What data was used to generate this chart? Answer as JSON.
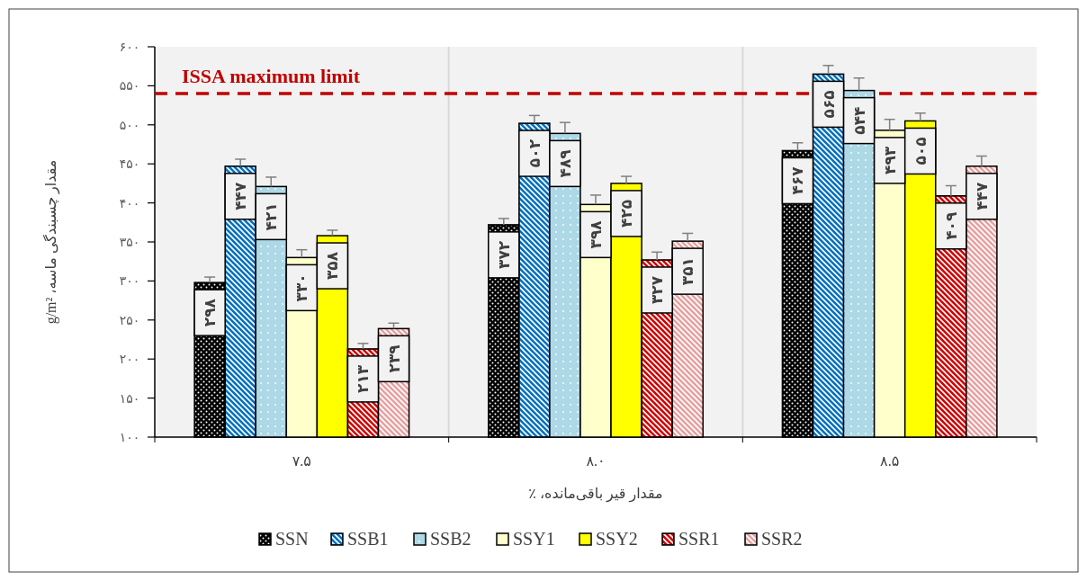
{
  "chart_data": {
    "type": "bar",
    "xlabel": "مقدار قیر باقی‌مانده، ٪",
    "ylabel": "مقدار چسبندگی ماسه، g/m²",
    "categories": [
      "۷.۵",
      "۸.۰",
      "۸.۵"
    ],
    "ylim": [
      100,
      600
    ],
    "yticks": [
      {
        "value": 100,
        "label": "۱۰۰"
      },
      {
        "value": 150,
        "label": "۱۵۰"
      },
      {
        "value": 200,
        "label": "۲۰۰"
      },
      {
        "value": 250,
        "label": "۲۵۰"
      },
      {
        "value": 300,
        "label": "۳۰۰"
      },
      {
        "value": 350,
        "label": "۳۵۰"
      },
      {
        "value": 400,
        "label": "۴۰۰"
      },
      {
        "value": 450,
        "label": "۴۵۰"
      },
      {
        "value": 500,
        "label": "۵۰۰"
      },
      {
        "value": 550,
        "label": "۵۵۰"
      },
      {
        "value": 600,
        "label": "۶۰۰"
      }
    ],
    "series": [
      {
        "name": "SSN",
        "color": "#000000",
        "values": [
          298,
          372,
          467
        ],
        "errors": [
          [
            298,
            305
          ],
          [
            372,
            380
          ],
          [
            467,
            477
          ]
        ],
        "value_labels": [
          "۲۹۸",
          "۳۷۲",
          "۴۶۷"
        ]
      },
      {
        "name": "SSB1",
        "color": "#0070c0",
        "values": [
          447,
          502,
          565
        ],
        "errors": [
          [
            447,
            456
          ],
          [
            502,
            512
          ],
          [
            565,
            576
          ]
        ],
        "value_labels": [
          "۴۴۷",
          "۵۰۲",
          "۵۶۵"
        ]
      },
      {
        "name": "SSB2",
        "color": "#add8e6",
        "values": [
          421,
          489,
          544
        ],
        "errors": [
          [
            421,
            433
          ],
          [
            489,
            503
          ],
          [
            544,
            560
          ]
        ],
        "value_labels": [
          "۴۲۱",
          "۴۸۹",
          "۵۴۴"
        ]
      },
      {
        "name": "SSY1",
        "color": "#ffffcc",
        "values": [
          330,
          398,
          493
        ],
        "errors": [
          [
            330,
            340
          ],
          [
            398,
            410
          ],
          [
            493,
            507
          ]
        ],
        "value_labels": [
          "۳۳۰",
          "۳۹۸",
          "۴۹۳"
        ]
      },
      {
        "name": "SSY2",
        "color": "#ffff00",
        "values": [
          358,
          425,
          505
        ],
        "errors": [
          [
            358,
            365
          ],
          [
            425,
            434
          ],
          [
            505,
            515
          ]
        ],
        "value_labels": [
          "۳۵۸",
          "۴۲۵",
          "۵۰۵"
        ]
      },
      {
        "name": "SSR1",
        "color": "#d00000",
        "values": [
          213,
          327,
          409
        ],
        "errors": [
          [
            213,
            220
          ],
          [
            327,
            337
          ],
          [
            409,
            422
          ]
        ],
        "value_labels": [
          "۲۱۳",
          "۳۲۷",
          "۴۰۹"
        ]
      },
      {
        "name": "SSR2",
        "color": "#e8a0a0",
        "values": [
          239,
          351,
          447
        ],
        "errors": [
          [
            239,
            246
          ],
          [
            351,
            361
          ],
          [
            447,
            460
          ]
        ],
        "value_labels": [
          "۲۳۹",
          "۳۵۱",
          "۴۴۷"
        ]
      }
    ],
    "ref_lines": [
      {
        "axis": "y",
        "value": 540,
        "label": "ISSA maximum limit",
        "color": "#c00000",
        "line_style": "dashed"
      }
    ],
    "legend": "bottom"
  }
}
